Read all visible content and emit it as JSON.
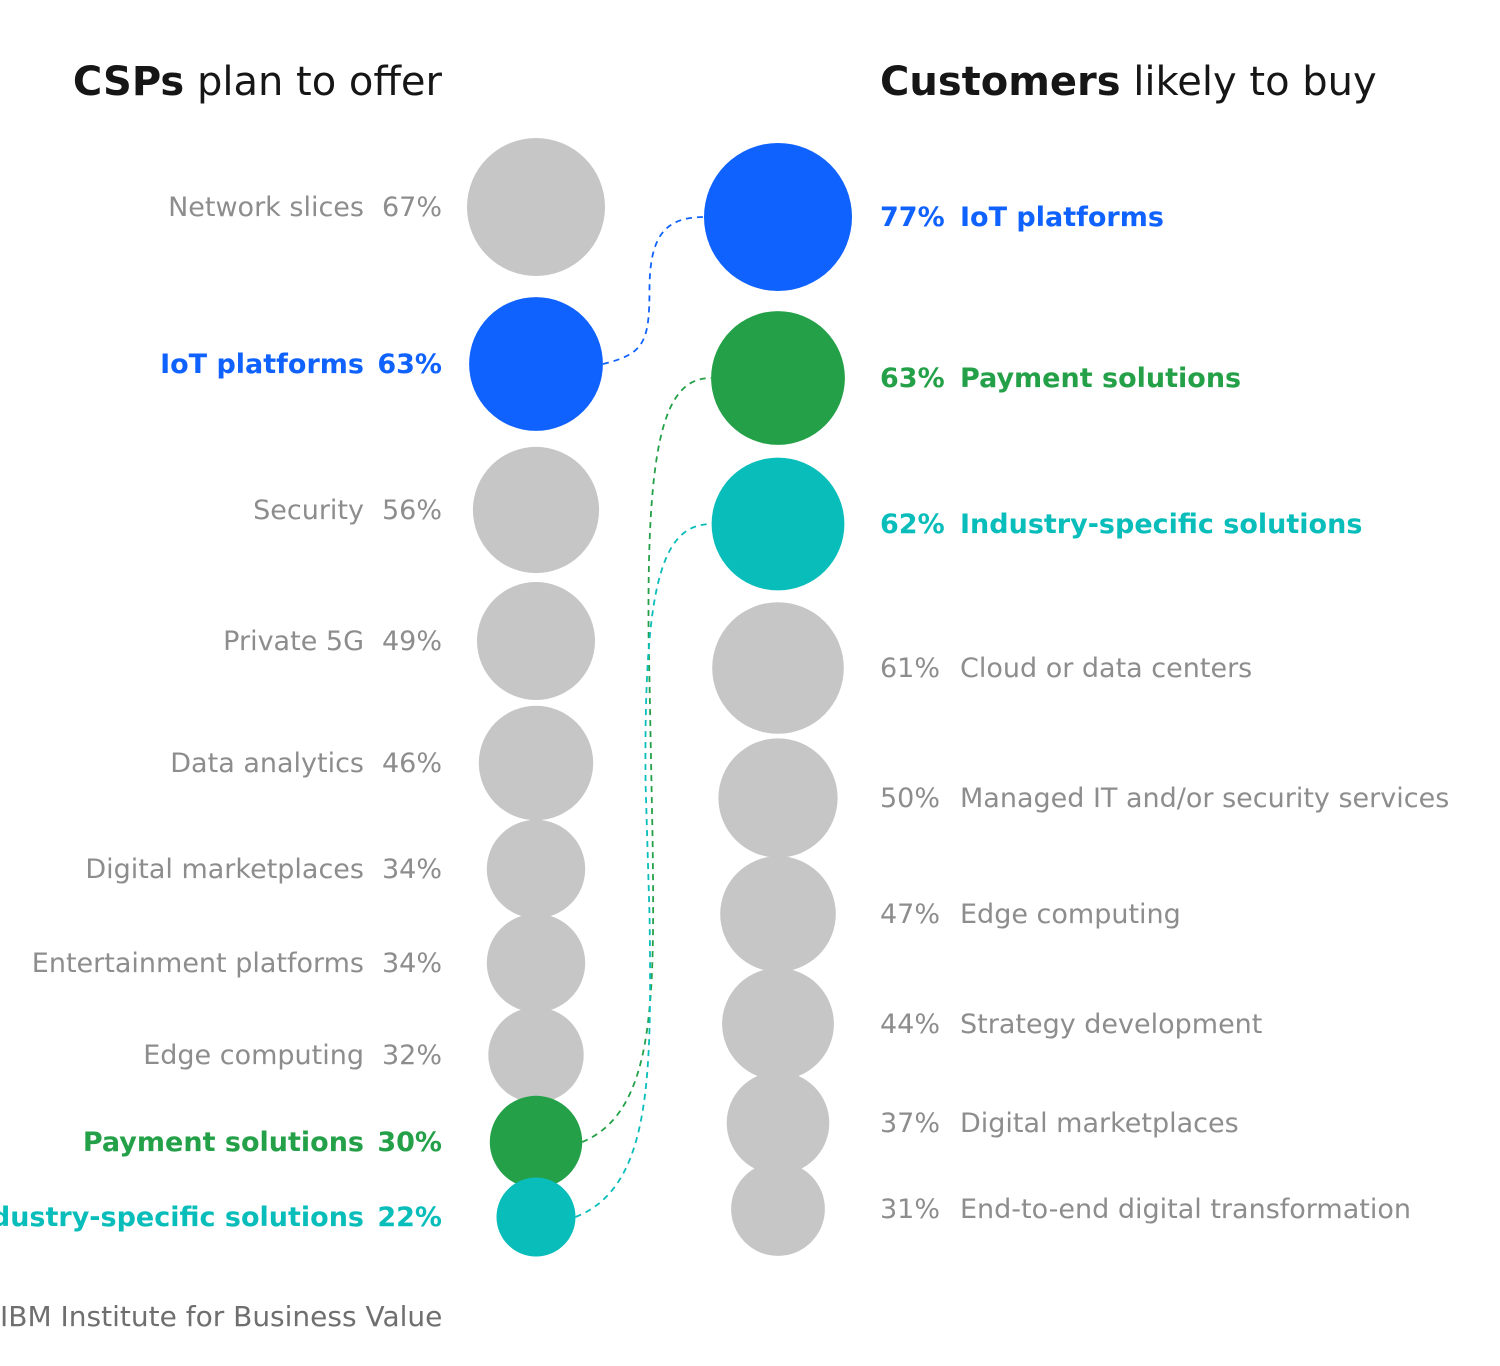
{
  "chart_data": {
    "type": "bubble-comparison",
    "left": {
      "title_bold": "CSPs",
      "title_rest": " plan to offer",
      "items": [
        {
          "label": "Network slices",
          "value": 67,
          "text": "67%",
          "highlight": null
        },
        {
          "label": "IoT platforms",
          "value": 63,
          "text": "63%",
          "highlight": "blue"
        },
        {
          "label": "Security",
          "value": 56,
          "text": "56%",
          "highlight": null
        },
        {
          "label": "Private 5G",
          "value": 49,
          "text": "49%",
          "highlight": null
        },
        {
          "label": "Data analytics",
          "value": 46,
          "text": "46%",
          "highlight": null
        },
        {
          "label": "Digital marketplaces",
          "value": 34,
          "text": "34%",
          "highlight": null
        },
        {
          "label": "Entertainment platforms",
          "value": 34,
          "text": "34%",
          "highlight": null
        },
        {
          "label": "Edge computing",
          "value": 32,
          "text": "32%",
          "highlight": null
        },
        {
          "label": "Payment solutions",
          "value": 30,
          "text": "30%",
          "highlight": "green"
        },
        {
          "label": "Industry-specific solutions",
          "value": 22,
          "text": "22%",
          "highlight": "teal"
        }
      ]
    },
    "right": {
      "title_bold": "Customers",
      "title_rest": " likely to buy",
      "items": [
        {
          "label": "IoT platforms",
          "value": 77,
          "text": "77%",
          "highlight": "blue"
        },
        {
          "label": "Payment solutions",
          "value": 63,
          "text": "63%",
          "highlight": "green"
        },
        {
          "label": "Industry-specific solutions",
          "value": 62,
          "text": "62%",
          "highlight": "teal"
        },
        {
          "label": "Cloud or data centers",
          "value": 61,
          "text": "61%",
          "highlight": null
        },
        {
          "label": "Managed IT and/or security services",
          "value": 50,
          "text": "50%",
          "highlight": null
        },
        {
          "label": "Edge computing",
          "value": 47,
          "text": "47%",
          "highlight": null
        },
        {
          "label": "Strategy development",
          "value": 44,
          "text": "44%",
          "highlight": null
        },
        {
          "label": "Digital marketplaces",
          "value": 37,
          "text": "37%",
          "highlight": null
        },
        {
          "label": "End-to-end digital transformation",
          "value": 31,
          "text": "31%",
          "highlight": null
        }
      ]
    },
    "links": [
      {
        "from": "IoT platforms",
        "to": "IoT platforms",
        "highlight": "blue"
      },
      {
        "from": "Payment solutions",
        "to": "Payment solutions",
        "highlight": "green"
      },
      {
        "from": "Industry-specific solutions",
        "to": "Industry-specific solutions",
        "highlight": "teal"
      }
    ],
    "colors": {
      "gray": "#c6c6c6",
      "gray_text": "#8d8d8d",
      "title_text": "#161616",
      "blue": "#0f62fe",
      "green": "#24a148",
      "teal": "#08bdba"
    }
  },
  "footer": {
    "credit": "IBM Institute for Business Value"
  }
}
